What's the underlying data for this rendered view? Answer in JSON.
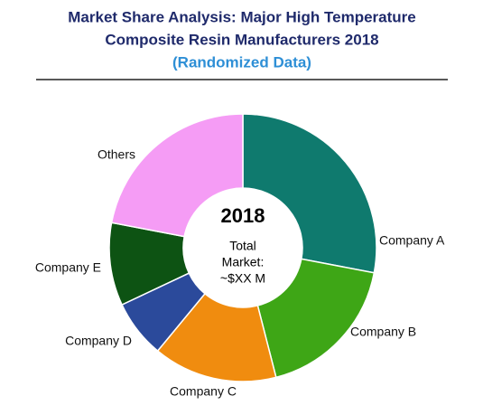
{
  "chart_data": {
    "type": "donut",
    "title": [
      "Market Share Analysis: Major High Temperature",
      "Composite Resin Manufacturers 2018"
    ],
    "subtitle": "(Randomized Data)",
    "center_title": "2018",
    "center_text": [
      "Total",
      "Market:",
      "~$XX M"
    ],
    "categories": [
      "Company A",
      "Company B",
      "Company C",
      "Company D",
      "Company E",
      "Others"
    ],
    "values": [
      28,
      18,
      15,
      7,
      10,
      22
    ],
    "colors": [
      "#0f7a6e",
      "#3ea616",
      "#f08c0f",
      "#2b4a9b",
      "#0d5313",
      "#f59cf5"
    ]
  }
}
